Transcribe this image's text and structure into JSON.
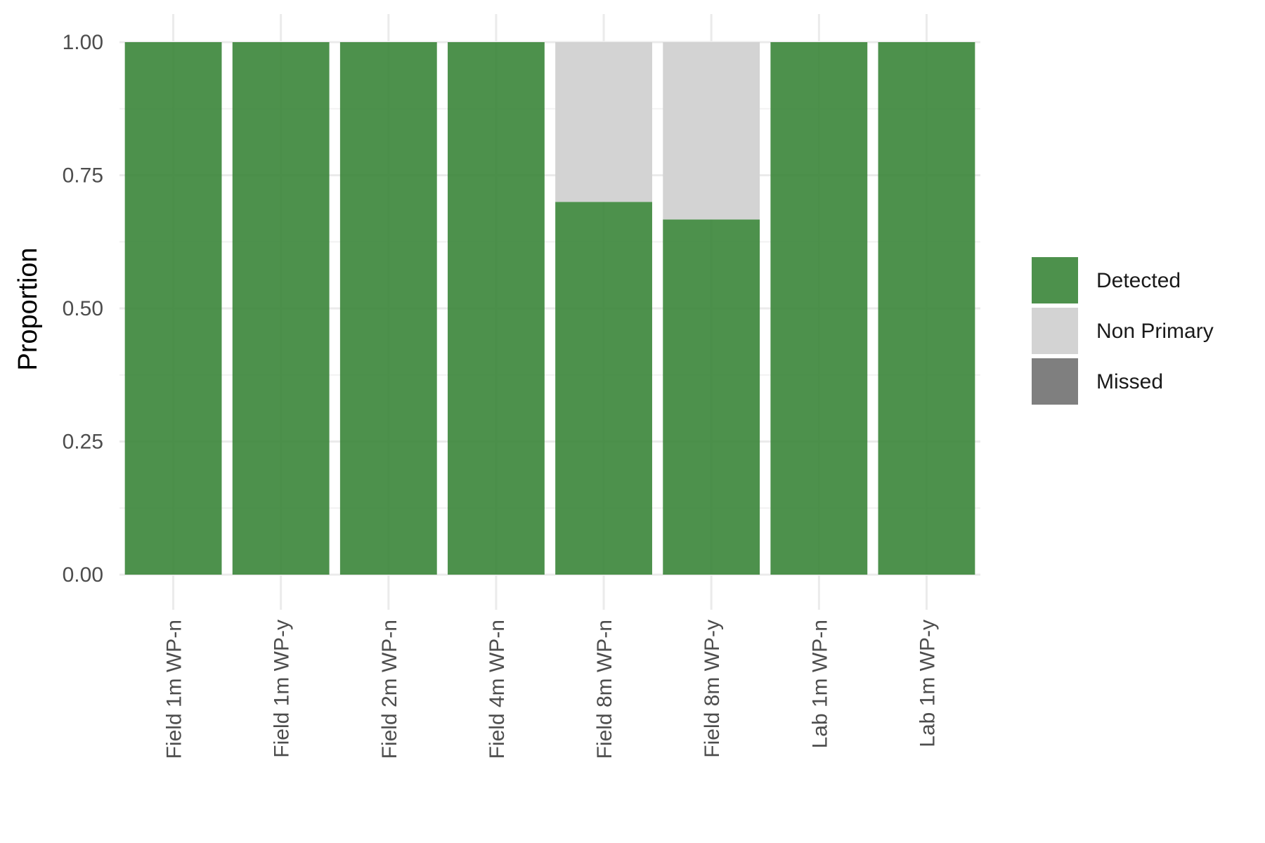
{
  "chart_data": {
    "type": "bar",
    "stacked": true,
    "title": "",
    "xlabel": "",
    "ylabel": "Proportion",
    "ylim": [
      0,
      1
    ],
    "yticks": [
      "0.00",
      "0.25",
      "0.50",
      "0.75",
      "1.00"
    ],
    "grid": true,
    "legend_position": "right",
    "categories": [
      "Field 1m  WP-n",
      "Field 1m  WP-y",
      "Field 2m  WP-n",
      "Field 4m  WP-n",
      "Field 8m  WP-n",
      "Field 8m  WP-y",
      "Lab 1m  WP-n",
      "Lab 1m  WP-y"
    ],
    "series": [
      {
        "name": "Detected",
        "color": "#3a8538",
        "values": [
          1.0,
          1.0,
          1.0,
          1.0,
          0.7,
          0.667,
          1.0,
          1.0
        ]
      },
      {
        "name": "Non Primary",
        "color": "#d3d3d3",
        "values": [
          0.0,
          0.0,
          0.0,
          0.0,
          0.3,
          0.333,
          0.0,
          0.0
        ]
      },
      {
        "name": "Missed",
        "color": "#7f7f7f",
        "values": [
          0.0,
          0.0,
          0.0,
          0.0,
          0.0,
          0.0,
          0.0,
          0.0
        ]
      }
    ]
  }
}
